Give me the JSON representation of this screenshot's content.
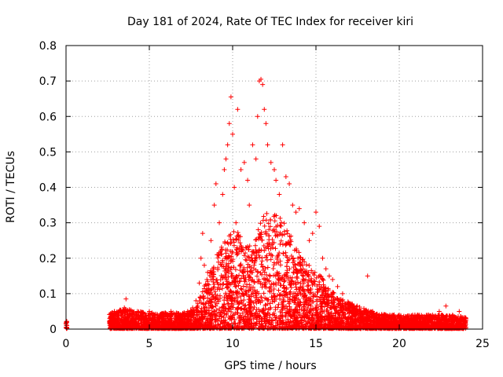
{
  "chart_data": {
    "type": "scatter",
    "title": "Day 181 of 2024, Rate Of TEC Index for receiver kiri",
    "xlabel": "GPS time / hours",
    "ylabel": "ROTI / TECUs",
    "xlim": [
      0,
      25
    ],
    "ylim": [
      0,
      0.8
    ],
    "xticks": [
      0,
      5,
      10,
      15,
      20,
      25
    ],
    "yticks": [
      0,
      0.1,
      0.2,
      0.3,
      0.4,
      0.5,
      0.6,
      0.7,
      0.8
    ],
    "xtick_labels": [
      "0",
      "5",
      "10",
      "15",
      "20",
      "25"
    ],
    "ytick_labels": [
      "0",
      "0.1",
      "0.2",
      "0.3",
      "0.4",
      "0.5",
      "0.6",
      "0.7",
      "0.8"
    ],
    "grid": true,
    "marker": "+",
    "color": "#ff0000",
    "series": [
      {
        "name": "ROTI",
        "x": [
          0.0,
          0.02,
          0.05,
          2.6,
          2.8,
          2.9,
          3.1,
          3.3,
          3.5,
          3.6,
          3.7,
          3.9,
          4.2,
          4.5,
          4.8,
          5.0,
          5.3,
          5.6,
          6.0,
          6.3,
          6.6,
          7.0,
          7.3,
          7.6,
          7.8,
          8.0,
          8.1,
          8.2,
          8.3,
          8.5,
          8.7,
          8.9,
          9.0,
          9.2,
          9.4,
          9.5,
          9.6,
          9.7,
          9.8,
          9.9,
          10.0,
          10.1,
          10.2,
          10.3,
          10.5,
          10.7,
          10.9,
          11.0,
          11.2,
          11.4,
          11.5,
          11.6,
          11.7,
          11.8,
          11.9,
          12.0,
          12.1,
          12.3,
          12.5,
          12.6,
          12.8,
          13.0,
          13.2,
          13.4,
          13.6,
          13.8,
          14.0,
          14.3,
          14.6,
          14.8,
          15.0,
          15.2,
          15.4,
          15.6,
          15.8,
          16.0,
          16.3,
          16.6,
          16.9,
          17.2,
          17.5,
          17.8,
          18.1,
          18.4,
          18.8,
          19.2,
          19.6,
          20.0,
          20.4,
          20.8,
          21.2,
          21.6,
          22.0,
          22.4,
          22.8,
          23.2,
          23.6,
          24.0
        ],
        "y": [
          0.015,
          0.02,
          0.01,
          0.02,
          0.03,
          0.05,
          0.03,
          0.04,
          0.06,
          0.085,
          0.04,
          0.05,
          0.03,
          0.04,
          0.04,
          0.05,
          0.04,
          0.03,
          0.04,
          0.05,
          0.04,
          0.04,
          0.05,
          0.06,
          0.08,
          0.13,
          0.2,
          0.27,
          0.18,
          0.16,
          0.25,
          0.35,
          0.41,
          0.3,
          0.38,
          0.45,
          0.48,
          0.52,
          0.58,
          0.655,
          0.55,
          0.4,
          0.3,
          0.62,
          0.45,
          0.47,
          0.42,
          0.35,
          0.52,
          0.48,
          0.6,
          0.7,
          0.705,
          0.69,
          0.62,
          0.58,
          0.52,
          0.47,
          0.45,
          0.42,
          0.38,
          0.52,
          0.43,
          0.41,
          0.35,
          0.33,
          0.34,
          0.3,
          0.25,
          0.27,
          0.33,
          0.29,
          0.2,
          0.17,
          0.15,
          0.14,
          0.12,
          0.1,
          0.07,
          0.06,
          0.05,
          0.04,
          0.15,
          0.05,
          0.04,
          0.04,
          0.035,
          0.04,
          0.03,
          0.04,
          0.03,
          0.03,
          0.04,
          0.05,
          0.065,
          0.04,
          0.05,
          0.03
        ]
      }
    ],
    "envelope": {
      "x": [
        0.0,
        2.6,
        3.5,
        5.0,
        7.0,
        7.8,
        8.4,
        9.0,
        9.6,
        10.2,
        10.8,
        11.3,
        11.8,
        12.3,
        12.8,
        13.3,
        13.8,
        14.3,
        14.8,
        15.3,
        15.8,
        16.3,
        16.8,
        17.3,
        18.0,
        18.5,
        19.5,
        21.0,
        22.5,
        24.0
      ],
      "max": [
        0.02,
        0.04,
        0.05,
        0.04,
        0.04,
        0.05,
        0.12,
        0.18,
        0.22,
        0.25,
        0.2,
        0.22,
        0.28,
        0.3,
        0.28,
        0.25,
        0.2,
        0.17,
        0.15,
        0.13,
        0.1,
        0.08,
        0.07,
        0.06,
        0.05,
        0.04,
        0.035,
        0.035,
        0.035,
        0.03
      ],
      "span": [
        [
          0.0,
          0.06
        ],
        [
          2.6,
          24.0
        ]
      ]
    }
  }
}
